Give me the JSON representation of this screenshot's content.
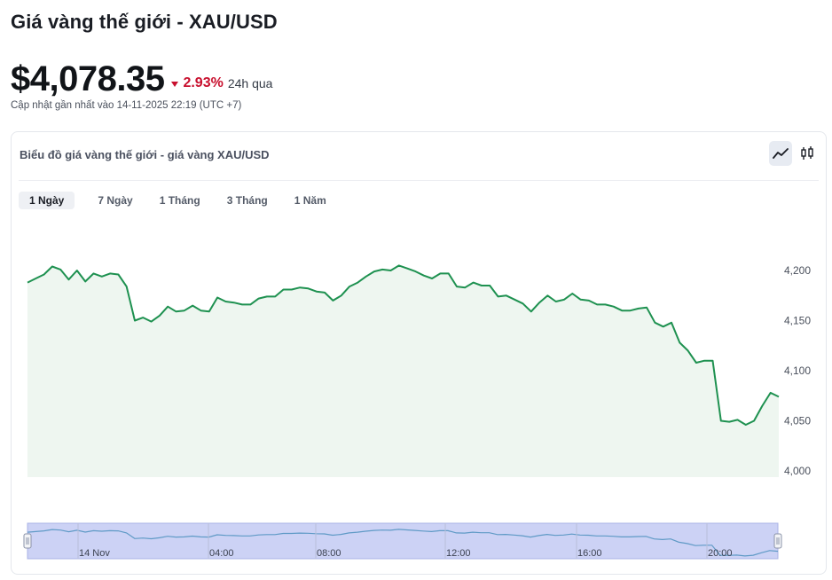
{
  "header": {
    "title": "Giá vàng thế giới - XAU/USD",
    "price": "$4,078.35",
    "change_pct": "2.93%",
    "change_period": "24h qua",
    "change_direction": "down",
    "updated": "Cập nhật gần nhất vào 14-11-2025 22:19 (UTC +7)"
  },
  "card": {
    "title": "Biểu đồ giá vàng thế giới - giá vàng XAU/USD",
    "chart_type_buttons": [
      {
        "icon": "line-chart-icon",
        "active": true
      },
      {
        "icon": "candlestick-icon",
        "active": false
      }
    ],
    "ranges": [
      {
        "label": "1 Ngày",
        "active": true
      },
      {
        "label": "7 Ngày",
        "active": false
      },
      {
        "label": "1 Tháng",
        "active": false
      },
      {
        "label": "3 Tháng",
        "active": false
      },
      {
        "label": "1 Năm",
        "active": false
      }
    ]
  },
  "colors": {
    "line": "#1e9150",
    "area": "#eef6f0",
    "down": "#c8102e",
    "navigator_fill": "#ccd2f5",
    "navigator_line": "#5f9ac6"
  },
  "chart_data": {
    "type": "area",
    "ylim": [
      4000,
      4210
    ],
    "yticks": [
      "4,000",
      "4,050",
      "4,100",
      "4,150",
      "4,200"
    ],
    "ytick_values": [
      4000,
      4050,
      4100,
      4150,
      4200
    ],
    "values": [
      4188,
      4192,
      4196,
      4204,
      4201,
      4191,
      4200,
      4189,
      4197,
      4194,
      4197,
      4196,
      4184,
      4150,
      4153,
      4149,
      4155,
      4164,
      4159,
      4160,
      4165,
      4160,
      4159,
      4173,
      4169,
      4168,
      4166,
      4166,
      4172,
      4174,
      4174,
      4181,
      4181,
      4183,
      4182,
      4179,
      4178,
      4170,
      4175,
      4184,
      4188,
      4194,
      4199,
      4201,
      4200,
      4205,
      4202,
      4199,
      4195,
      4192,
      4197,
      4197,
      4184,
      4183,
      4188,
      4185,
      4185,
      4174,
      4175,
      4171,
      4167,
      4159,
      4168,
      4175,
      4169,
      4171,
      4177,
      4171,
      4170,
      4166,
      4166,
      4164,
      4160,
      4160,
      4162,
      4163,
      4148,
      4144,
      4148,
      4128,
      4120,
      4108,
      4110,
      4110,
      4050,
      4049,
      4051,
      4046,
      4050,
      4065,
      4078,
      4074
    ],
    "navigator_labels": [
      "14 Nov",
      "04:00",
      "08:00",
      "12:00",
      "16:00",
      "20:00"
    ]
  }
}
